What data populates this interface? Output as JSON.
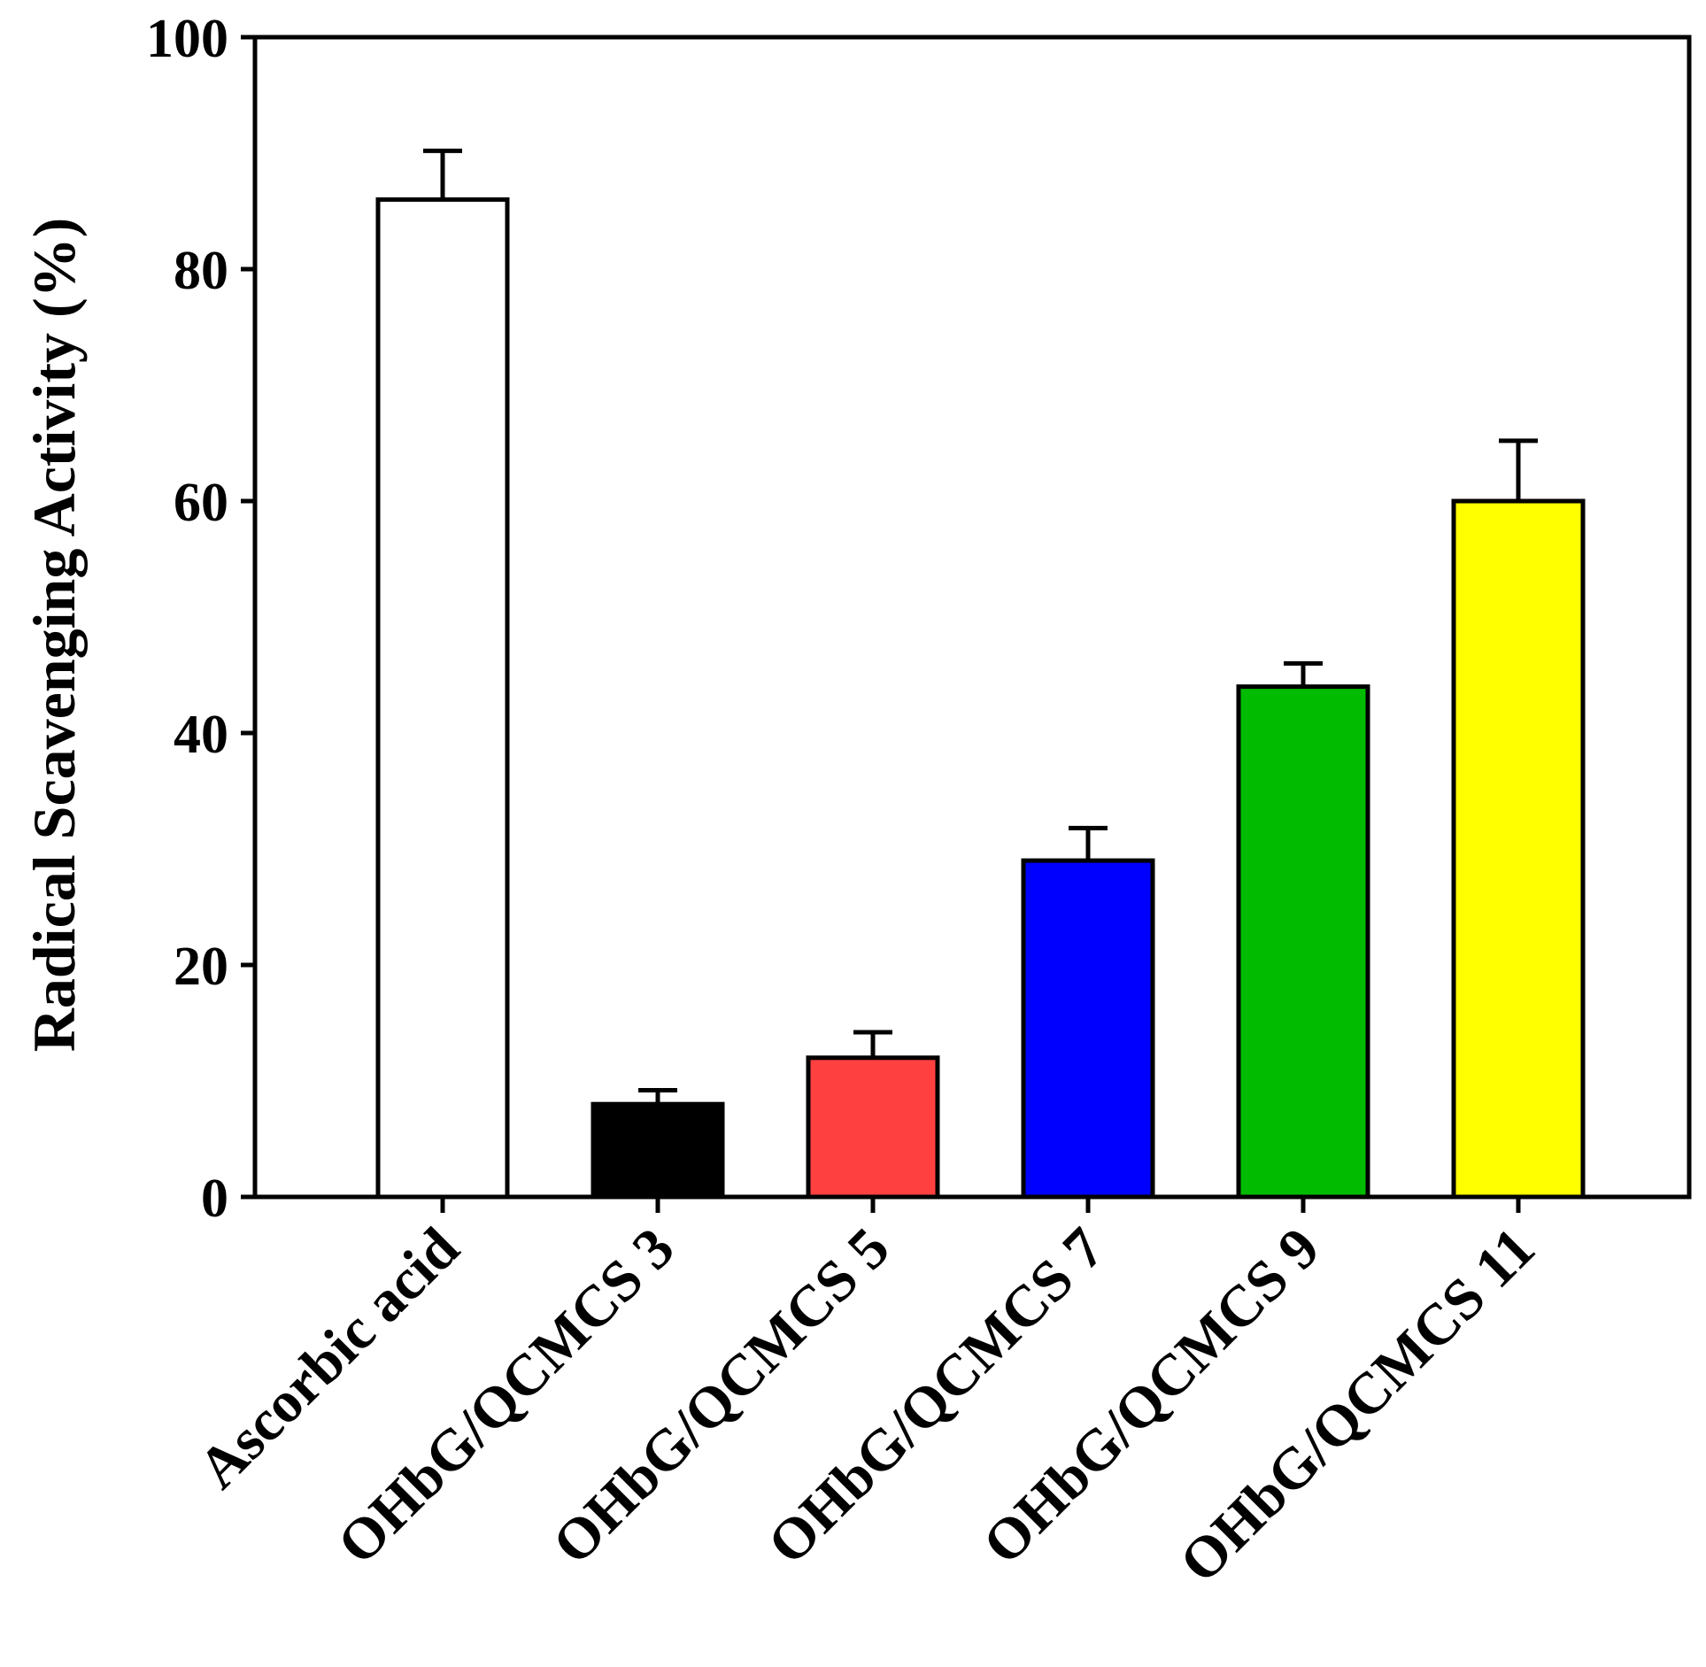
{
  "chart_data": {
    "type": "bar",
    "title": "",
    "xlabel": "",
    "ylabel": "Radical Scavenging Activity (%)",
    "ylim": [
      0,
      100
    ],
    "yticks": [
      0,
      20,
      40,
      60,
      80,
      100
    ],
    "categories": [
      "Ascorbic acid",
      "OHbG/QCMCS 3",
      "OHbG/QCMCS 5",
      "OHbG/QCMCS 7",
      "OHbG/QCMCS 9",
      "OHbG/QCMCS 11"
    ],
    "values": [
      86,
      8,
      12,
      29,
      44,
      60
    ],
    "errors": [
      4.2,
      1.2,
      2.2,
      2.8,
      2.0,
      5.2
    ],
    "colors": [
      "#ffffff",
      "#000000",
      "#ff4040",
      "#0000ff",
      "#00bb00",
      "#ffff00"
    ]
  }
}
